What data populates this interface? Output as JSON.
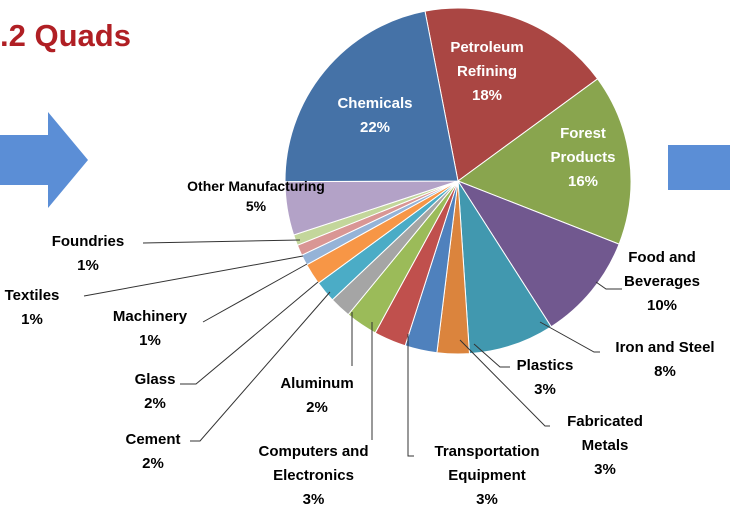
{
  "chart_data": {
    "type": "pie",
    "title": ".2 Quads",
    "categories": [
      "Petroleum Refining",
      "Forest Products",
      "Food and Beverages",
      "Iron and Steel",
      "Plastics",
      "Fabricated Metals",
      "Transportation Equipment",
      "Computers and Electronics",
      "Aluminum",
      "Cement",
      "Glass",
      "Machinery",
      "Textiles",
      "Foundries",
      "Other Manufacturing",
      "Chemicals"
    ],
    "values": [
      18,
      16,
      10,
      8,
      3,
      3,
      3,
      3,
      2,
      2,
      2,
      1,
      1,
      1,
      5,
      22
    ],
    "value_labels": [
      "18%",
      "16%",
      "10%",
      "8%",
      "3%",
      "3%",
      "3%",
      "3%",
      "2%",
      "2%",
      "2%",
      "1%",
      "1%",
      "1%",
      "5%",
      "22%"
    ],
    "colors": [
      "#aa4643",
      "#89a54e",
      "#71588f",
      "#4198af",
      "#db843d",
      "#4f81bd",
      "#c0504d",
      "#9bbb59",
      "#a5a5a5",
      "#4bacc6",
      "#f79646",
      "#95b3d7",
      "#d99694",
      "#c3d69b",
      "#b3a2c7",
      "#4572a7"
    ]
  }
}
